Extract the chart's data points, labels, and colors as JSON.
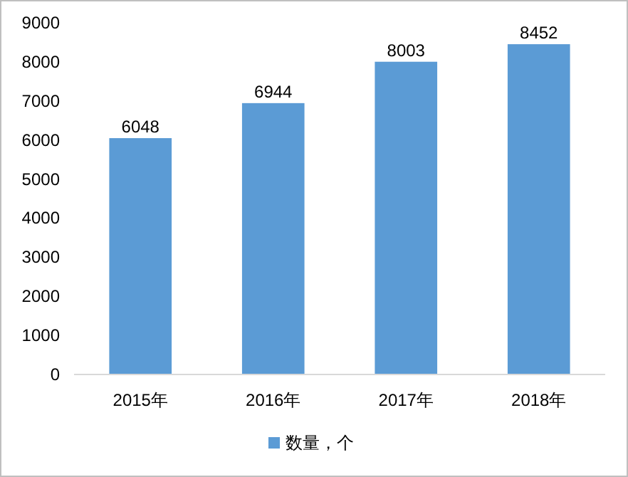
{
  "chart_data": {
    "type": "bar",
    "categories": [
      "2015年",
      "2016年",
      "2017年",
      "2018年"
    ],
    "series": [
      {
        "name": "数量，个",
        "color": "#5b9bd5",
        "values": [
          6048,
          6944,
          8003,
          8452
        ]
      }
    ],
    "ylim": [
      0,
      9000
    ],
    "yticks": [
      0,
      1000,
      2000,
      3000,
      4000,
      5000,
      6000,
      7000,
      8000,
      9000
    ],
    "data_labels": true,
    "legend": "bottom",
    "grid": false
  }
}
